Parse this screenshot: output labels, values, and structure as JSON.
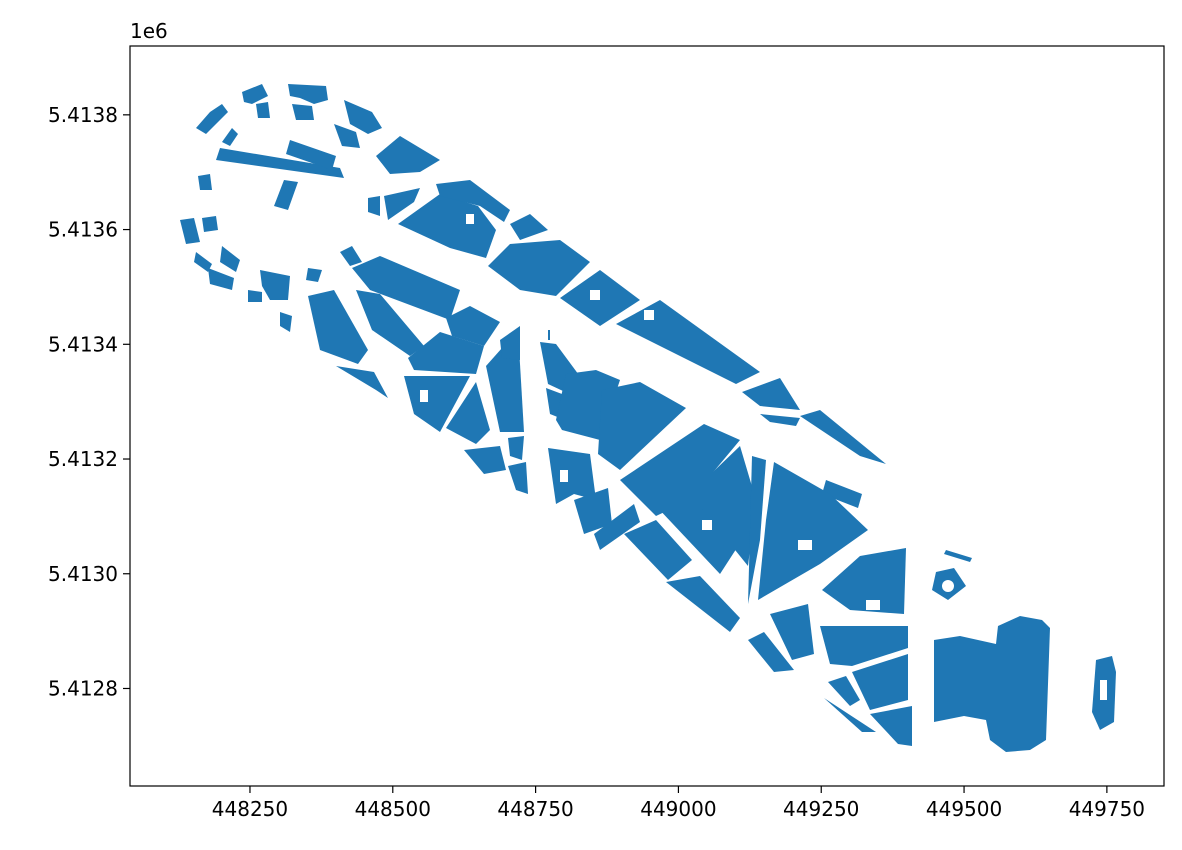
{
  "chart_data": {
    "type": "map",
    "layer": "building footprints",
    "fill_color": "#1f77b4",
    "x_ticks": [
      "448250",
      "448500",
      "448750",
      "449000",
      "449250",
      "449500",
      "449750"
    ],
    "y_ticks": [
      "5.4128",
      "5.4130",
      "5.4132",
      "5.4134",
      "5.4136",
      "5.4138"
    ],
    "y_offset_label": "1e6",
    "xlim": [
      448040,
      449850
    ],
    "ylim": [
      5412630,
      5413920
    ],
    "grid": false,
    "legend": "none"
  }
}
